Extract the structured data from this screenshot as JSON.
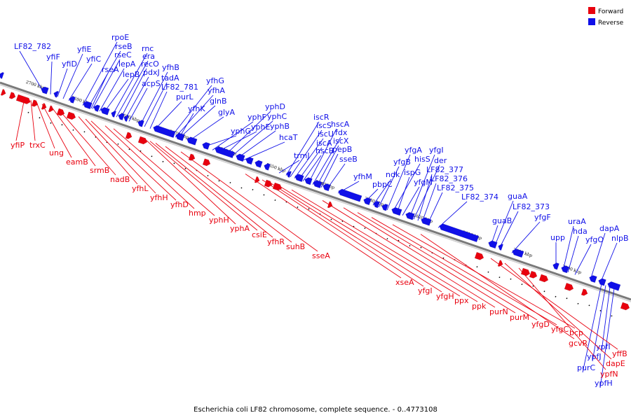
{
  "caption": "Escherichia coli LF82 chromosome, complete sequence. - 0..4773108",
  "legend": {
    "forward_label": "Forward",
    "reverse_label": "Reverse"
  },
  "colors": {
    "forward": "#e8000e",
    "reverse": "#1010e8",
    "backbone": "#888888"
  },
  "ticks": [
    "2700 kbp",
    "2690 kbp",
    "2680 kbp",
    "2670 kbp",
    "2660 kbp",
    "2650 kbp",
    "2640 kbp",
    "2630 kbp",
    "2620 kbp",
    "2610 kbp",
    "2600 kbp",
    "2590 kbp"
  ],
  "forward_genes": [
    "yfiP",
    "trxC",
    "ung",
    "eamB",
    "srmB",
    "nadB",
    "yfhL",
    "yfhH",
    "yfhD",
    "hmp",
    "yphH",
    "yphA",
    "csiE",
    "yfhR",
    "suhB",
    "sseA",
    "xseA",
    "yfgI",
    "yfgH",
    "ppx",
    "ppk",
    "purN",
    "purM",
    "yfgD",
    "yfgC",
    "bcp",
    "gcvR",
    "yffB",
    "dapE",
    "ypfN"
  ],
  "reverse_genes": [
    "LF82_782",
    "yfiF",
    "yfiE",
    "yfiD",
    "yfiC",
    "rpoE",
    "rseB",
    "rseC",
    "rseA",
    "lepA",
    "lepB",
    "rnc",
    "era",
    "recO",
    "pdxJ",
    "acpS",
    "yfhB",
    "tadA",
    "LF82_781",
    "purL",
    "yfhG",
    "yfhA",
    "glnB",
    "yfhK",
    "glyA",
    "yphG",
    "yphF",
    "yphE",
    "yphD",
    "yphC",
    "yphB",
    "hcaT",
    "iscR",
    "iscS",
    "iscU",
    "iscA",
    "hscB",
    "hscA",
    "fdx",
    "iscX",
    "pepB",
    "trmJ",
    "sseB",
    "yfhM",
    "pbpC",
    "ndk",
    "yfgB",
    "yfgA",
    "hisS",
    "ispG",
    "yfgM",
    "yfgI",
    "der",
    "LF82_377",
    "LF82_376",
    "LF82_375",
    "LF82_374",
    "guaB",
    "guaA",
    "LF82_373",
    "yfgF",
    "upp",
    "uraA",
    "hda",
    "yfgO",
    "dapA",
    "nlpB",
    "purC",
    "ypfJ",
    "ypfI",
    "ypfH"
  ]
}
